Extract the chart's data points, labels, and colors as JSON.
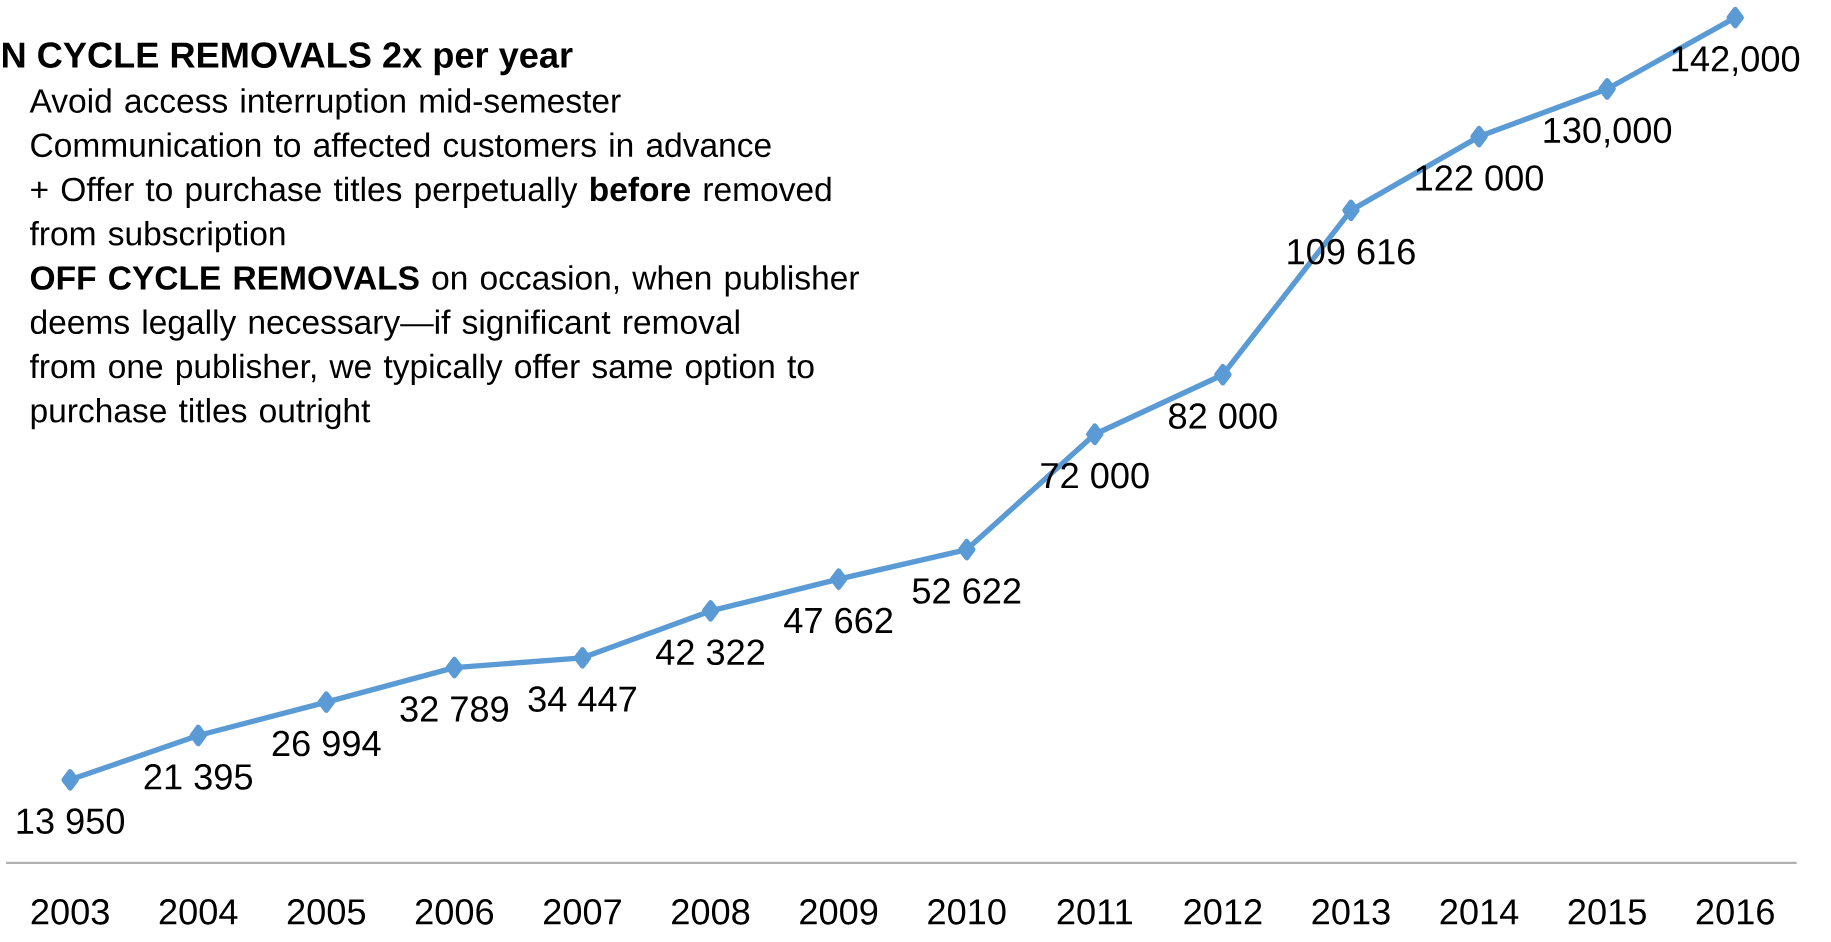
{
  "chart_data": {
    "type": "line",
    "title": "N CYCLE REMOVALS 2x per year",
    "annotations": [
      "Avoid access interruption mid-semester",
      "Communication to affected customers in advance",
      "+ Offer to purchase titles perpetually **before** removed from subscription",
      "**OFF CYCLE REMOVALS** on occasion, when publisher deems legally necessary—if significant removal from one publisher, we typically offer same option to purchase titles outright"
    ],
    "categories": [
      "2003",
      "2004",
      "2005",
      "2006",
      "2007",
      "2008",
      "2009",
      "2010",
      "2011",
      "2012",
      "2013",
      "2014",
      "2015",
      "2016"
    ],
    "values": [
      13950,
      21395,
      26994,
      32789,
      34447,
      42322,
      47662,
      52622,
      72000,
      82000,
      109616,
      122000,
      130000,
      142000
    ],
    "value_labels": [
      "13 950",
      "21 395",
      "26 994",
      "32 789",
      "34 447",
      "42 322",
      "47 662",
      "52 622",
      "72 000",
      "82 000",
      "109 616",
      "122 000",
      "130,000",
      "142,000"
    ],
    "color": "#5b9bd5",
    "marker": "diamond"
  }
}
